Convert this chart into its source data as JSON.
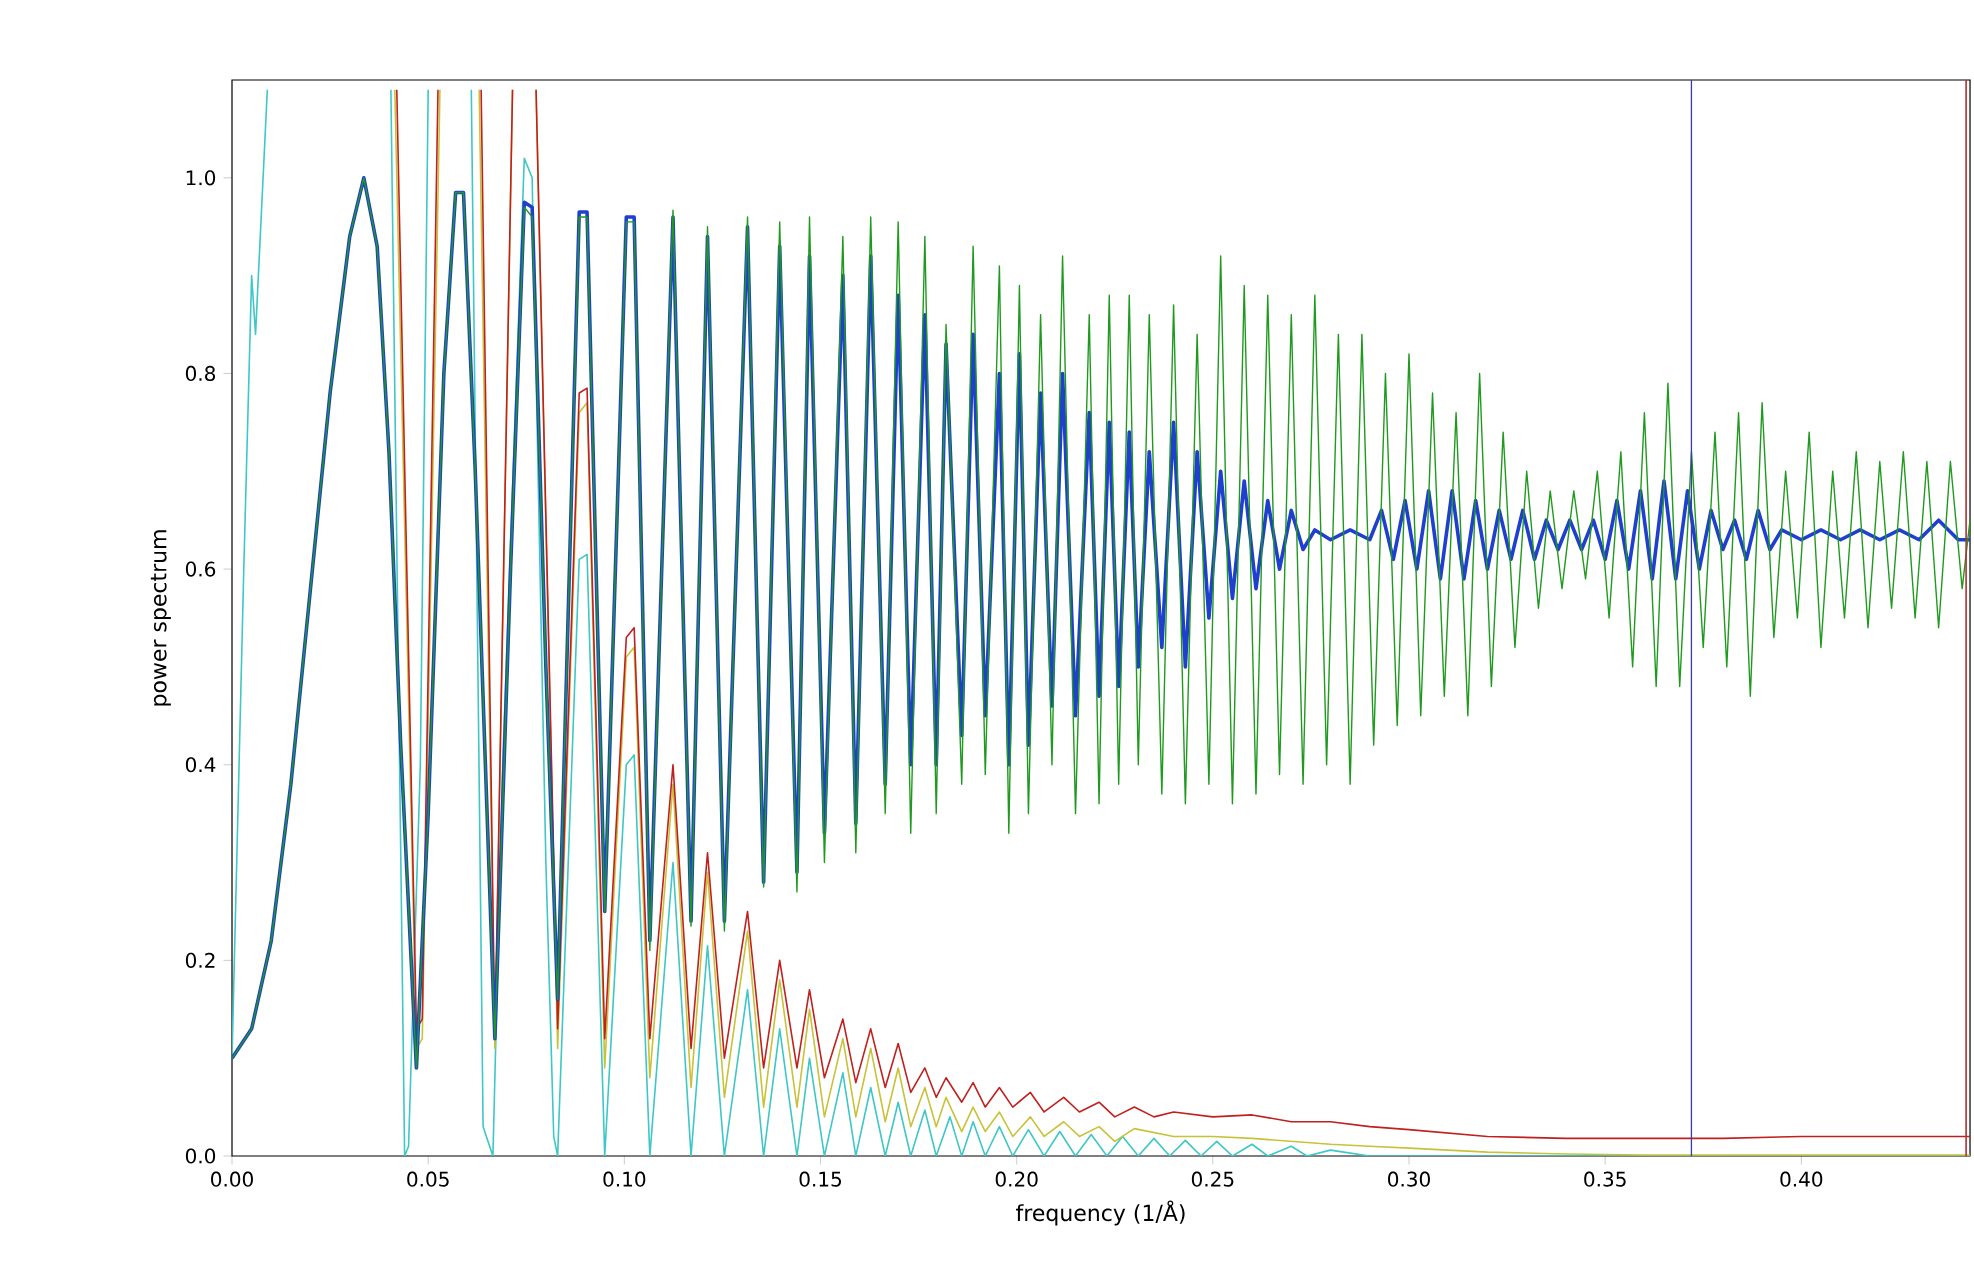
{
  "chart_data": {
    "type": "line",
    "xlabel": "frequency (1/Å)",
    "ylabel": "power spectrum",
    "xlim": [
      0,
      0.443
    ],
    "ylim": [
      0,
      1.1
    ],
    "xticks": [
      {
        "value": 0,
        "label": "0.00"
      },
      {
        "value": 0.05,
        "label": "0.05"
      },
      {
        "value": 0.1,
        "label": "0.10"
      },
      {
        "value": 0.15,
        "label": "0.15"
      },
      {
        "value": 0.2,
        "label": "0.20"
      },
      {
        "value": 0.25,
        "label": "0.25"
      },
      {
        "value": 0.3,
        "label": "0.30"
      },
      {
        "value": 0.35,
        "label": "0.35"
      },
      {
        "value": 0.4,
        "label": "0.40"
      }
    ],
    "yticks": [
      {
        "value": 0,
        "label": "0.0"
      },
      {
        "value": 0.2,
        "label": "0.2"
      },
      {
        "value": 0.4,
        "label": "0.4"
      },
      {
        "value": 0.6,
        "label": "0.6"
      },
      {
        "value": 0.8,
        "label": "0.8"
      },
      {
        "value": 1.0,
        "label": "1.0"
      }
    ],
    "marker": "none",
    "line_style": "solid",
    "ref_lines": [
      {
        "axis": "x",
        "value": 0.372,
        "color": "#3a3aa8"
      },
      {
        "axis": "x",
        "value": 0.442,
        "color": "#b03030"
      }
    ],
    "series": [
      {
        "color": "#1f9a1f",
        "x": [
          0,
          0.005,
          0.01,
          0.015,
          0.02,
          0.025,
          0.03,
          0.0336,
          0.037,
          0.04,
          0.043,
          0.047,
          0.05,
          0.054,
          0.057,
          0.059,
          0.062,
          0.067,
          0.071,
          0.0745,
          0.0765,
          0.08,
          0.083,
          0.086,
          0.0885,
          0.0905,
          0.095,
          0.0985,
          0.1005,
          0.1025,
          0.1065,
          0.1124,
          0.117,
          0.1212,
          0.1255,
          0.1314,
          0.1355,
          0.1396,
          0.144,
          0.1472,
          0.151,
          0.1557,
          0.159,
          0.1628,
          0.1665,
          0.1698,
          0.173,
          0.1766,
          0.1795,
          0.182,
          0.186,
          0.1889,
          0.192,
          0.1956,
          0.198,
          0.2007,
          0.203,
          0.2061,
          0.209,
          0.2117,
          0.215,
          0.2185,
          0.221,
          0.2236,
          0.226,
          0.2287,
          0.231,
          0.2338,
          0.237,
          0.24,
          0.243,
          0.246,
          0.249,
          0.252,
          0.255,
          0.258,
          0.261,
          0.264,
          0.267,
          0.27,
          0.273,
          0.276,
          0.279,
          0.282,
          0.285,
          0.288,
          0.291,
          0.294,
          0.297,
          0.3,
          0.303,
          0.306,
          0.309,
          0.312,
          0.315,
          0.318,
          0.321,
          0.324,
          0.327,
          0.33,
          0.333,
          0.336,
          0.339,
          0.342,
          0.345,
          0.348,
          0.351,
          0.354,
          0.357,
          0.36,
          0.363,
          0.366,
          0.369,
          0.372,
          0.375,
          0.378,
          0.381,
          0.384,
          0.387,
          0.39,
          0.393,
          0.396,
          0.399,
          0.402,
          0.405,
          0.408,
          0.411,
          0.414,
          0.417,
          0.42,
          0.423,
          0.426,
          0.429,
          0.432,
          0.435,
          0.438,
          0.441,
          0.443
        ],
        "values": [
          0.1,
          0.13,
          0.22,
          0.38,
          0.58,
          0.78,
          0.94,
          1.0,
          0.93,
          0.72,
          0.42,
          0.09,
          0.35,
          0.8,
          0.985,
          0.985,
          0.7,
          0.12,
          0.6,
          0.97,
          0.96,
          0.5,
          0.16,
          0.6,
          0.96,
          0.96,
          0.25,
          0.7,
          0.955,
          0.955,
          0.21,
          0.967,
          0.235,
          0.95,
          0.23,
          0.96,
          0.275,
          0.955,
          0.27,
          0.96,
          0.3,
          0.94,
          0.31,
          0.96,
          0.35,
          0.955,
          0.33,
          0.94,
          0.35,
          0.85,
          0.38,
          0.93,
          0.39,
          0.91,
          0.33,
          0.89,
          0.35,
          0.86,
          0.4,
          0.92,
          0.35,
          0.86,
          0.36,
          0.88,
          0.38,
          0.88,
          0.4,
          0.86,
          0.37,
          0.87,
          0.36,
          0.84,
          0.38,
          0.92,
          0.36,
          0.89,
          0.37,
          0.88,
          0.39,
          0.86,
          0.38,
          0.88,
          0.4,
          0.84,
          0.38,
          0.84,
          0.42,
          0.8,
          0.44,
          0.82,
          0.45,
          0.78,
          0.47,
          0.76,
          0.45,
          0.8,
          0.48,
          0.74,
          0.52,
          0.7,
          0.56,
          0.68,
          0.58,
          0.68,
          0.59,
          0.7,
          0.55,
          0.72,
          0.5,
          0.76,
          0.48,
          0.79,
          0.48,
          0.72,
          0.52,
          0.74,
          0.5,
          0.76,
          0.47,
          0.77,
          0.53,
          0.7,
          0.55,
          0.74,
          0.52,
          0.7,
          0.55,
          0.72,
          0.54,
          0.71,
          0.56,
          0.72,
          0.55,
          0.71,
          0.54,
          0.71,
          0.58,
          0.65
        ]
      },
      {
        "color": "#1f3fcf",
        "x": [
          0,
          0.005,
          0.01,
          0.015,
          0.02,
          0.025,
          0.03,
          0.0336,
          0.037,
          0.04,
          0.043,
          0.047,
          0.05,
          0.054,
          0.057,
          0.059,
          0.062,
          0.067,
          0.071,
          0.0745,
          0.0765,
          0.08,
          0.083,
          0.086,
          0.0885,
          0.0905,
          0.095,
          0.0985,
          0.1005,
          0.1025,
          0.1065,
          0.1124,
          0.117,
          0.1212,
          0.1255,
          0.1314,
          0.1355,
          0.1396,
          0.144,
          0.1472,
          0.151,
          0.1557,
          0.159,
          0.1628,
          0.1665,
          0.1698,
          0.173,
          0.1766,
          0.1795,
          0.182,
          0.186,
          0.1889,
          0.192,
          0.1956,
          0.198,
          0.2007,
          0.203,
          0.2061,
          0.209,
          0.2117,
          0.215,
          0.2185,
          0.221,
          0.2236,
          0.226,
          0.2287,
          0.231,
          0.2338,
          0.237,
          0.24,
          0.243,
          0.246,
          0.249,
          0.252,
          0.255,
          0.258,
          0.261,
          0.264,
          0.267,
          0.27,
          0.273,
          0.276,
          0.28,
          0.285,
          0.29,
          0.293,
          0.296,
          0.299,
          0.302,
          0.305,
          0.308,
          0.311,
          0.314,
          0.317,
          0.32,
          0.323,
          0.326,
          0.329,
          0.332,
          0.335,
          0.338,
          0.341,
          0.344,
          0.347,
          0.35,
          0.353,
          0.356,
          0.359,
          0.362,
          0.365,
          0.368,
          0.371,
          0.374,
          0.377,
          0.38,
          0.383,
          0.386,
          0.389,
          0.392,
          0.395,
          0.4,
          0.405,
          0.41,
          0.415,
          0.42,
          0.425,
          0.43,
          0.435,
          0.44,
          0.443
        ],
        "values": [
          0.1,
          0.13,
          0.22,
          0.38,
          0.58,
          0.78,
          0.94,
          1.0,
          0.93,
          0.72,
          0.42,
          0.09,
          0.35,
          0.8,
          0.985,
          0.985,
          0.7,
          0.12,
          0.6,
          0.975,
          0.97,
          0.5,
          0.16,
          0.6,
          0.965,
          0.965,
          0.25,
          0.7,
          0.96,
          0.96,
          0.22,
          0.96,
          0.24,
          0.94,
          0.24,
          0.95,
          0.28,
          0.93,
          0.29,
          0.92,
          0.33,
          0.9,
          0.34,
          0.92,
          0.38,
          0.88,
          0.4,
          0.86,
          0.4,
          0.83,
          0.43,
          0.84,
          0.45,
          0.8,
          0.4,
          0.82,
          0.42,
          0.78,
          0.46,
          0.8,
          0.45,
          0.76,
          0.47,
          0.75,
          0.48,
          0.74,
          0.5,
          0.72,
          0.52,
          0.75,
          0.5,
          0.72,
          0.55,
          0.7,
          0.57,
          0.69,
          0.58,
          0.67,
          0.6,
          0.66,
          0.62,
          0.64,
          0.63,
          0.64,
          0.63,
          0.66,
          0.61,
          0.67,
          0.6,
          0.68,
          0.59,
          0.68,
          0.59,
          0.67,
          0.6,
          0.66,
          0.61,
          0.66,
          0.61,
          0.65,
          0.62,
          0.65,
          0.62,
          0.65,
          0.61,
          0.67,
          0.6,
          0.68,
          0.59,
          0.69,
          0.59,
          0.68,
          0.6,
          0.66,
          0.62,
          0.65,
          0.61,
          0.66,
          0.62,
          0.64,
          0.63,
          0.64,
          0.63,
          0.64,
          0.63,
          0.64,
          0.63,
          0.65,
          0.63,
          0.63
        ]
      },
      {
        "color": "#c0201e",
        "x": [
          0.042,
          0.047,
          0.0485,
          0.0525,
          0.058,
          0.0635,
          0.067,
          0.0715,
          0.0745,
          0.0775,
          0.083,
          0.0885,
          0.0905,
          0.095,
          0.1005,
          0.1025,
          0.1065,
          0.1124,
          0.117,
          0.1212,
          0.1255,
          0.1314,
          0.1355,
          0.1396,
          0.144,
          0.1472,
          0.151,
          0.1557,
          0.159,
          0.1628,
          0.1665,
          0.1698,
          0.173,
          0.1766,
          0.1795,
          0.182,
          0.186,
          0.1889,
          0.192,
          0.1956,
          0.199,
          0.2035,
          0.207,
          0.212,
          0.216,
          0.221,
          0.225,
          0.23,
          0.235,
          0.24,
          0.25,
          0.26,
          0.27,
          0.28,
          0.29,
          0.3,
          0.32,
          0.34,
          0.36,
          0.38,
          0.4,
          0.42,
          0.443
        ],
        "values": [
          1.09,
          0.13,
          0.14,
          1.09,
          null,
          1.09,
          0.12,
          1.09,
          null,
          1.09,
          0.13,
          0.78,
          0.785,
          0.12,
          0.53,
          0.54,
          0.12,
          0.4,
          0.11,
          0.31,
          0.1,
          0.25,
          0.09,
          0.2,
          0.09,
          0.17,
          0.08,
          0.14,
          0.075,
          0.13,
          0.07,
          0.115,
          0.065,
          0.09,
          0.06,
          0.08,
          0.055,
          0.075,
          0.05,
          0.07,
          0.05,
          0.065,
          0.045,
          0.06,
          0.045,
          0.055,
          0.04,
          0.05,
          0.04,
          0.045,
          0.04,
          0.042,
          0.035,
          0.035,
          0.03,
          0.027,
          0.02,
          0.018,
          0.018,
          0.018,
          0.02,
          0.02,
          0.02
        ]
      },
      {
        "color": "#c8c23a",
        "x": [
          0.0415,
          0.047,
          0.0485,
          0.053,
          0.058,
          0.063,
          0.067,
          0.0715,
          0.0745,
          0.0775,
          0.083,
          0.0885,
          0.0905,
          0.095,
          0.1005,
          0.1025,
          0.1065,
          0.1124,
          0.117,
          0.1212,
          0.1255,
          0.1314,
          0.1355,
          0.1396,
          0.144,
          0.1472,
          0.151,
          0.1557,
          0.159,
          0.1628,
          0.1665,
          0.1698,
          0.173,
          0.1766,
          0.1795,
          0.182,
          0.186,
          0.1889,
          0.192,
          0.1956,
          0.199,
          0.2035,
          0.207,
          0.212,
          0.216,
          0.221,
          0.225,
          0.23,
          0.24,
          0.25,
          0.26,
          0.27,
          0.28,
          0.29,
          0.3,
          0.32,
          0.34,
          0.36,
          0.4,
          0.443
        ],
        "values": [
          1.09,
          0.11,
          0.12,
          1.09,
          null,
          1.09,
          0.11,
          1.09,
          null,
          1.09,
          0.11,
          0.76,
          0.77,
          0.09,
          0.51,
          0.52,
          0.08,
          0.38,
          0.07,
          0.29,
          0.06,
          0.23,
          0.05,
          0.18,
          0.05,
          0.15,
          0.04,
          0.12,
          0.04,
          0.11,
          0.035,
          0.09,
          0.03,
          0.07,
          0.03,
          0.06,
          0.025,
          0.05,
          0.025,
          0.045,
          0.02,
          0.04,
          0.02,
          0.035,
          0.02,
          0.03,
          0.015,
          0.028,
          0.02,
          0.02,
          0.018,
          0.015,
          0.012,
          0.01,
          0.008,
          0.004,
          0.002,
          0.001,
          0.001,
          0.001
        ]
      },
      {
        "color": "#3fc6c6",
        "x": [
          0,
          0.003,
          0.005,
          0.006,
          0.009,
          0.025,
          0.0405,
          0.044,
          0.045,
          0.048,
          0.05,
          0.055,
          0.061,
          0.064,
          0.0665,
          0.069,
          0.0745,
          0.0765,
          0.08,
          0.082,
          0.083,
          0.0885,
          0.0905,
          0.095,
          0.1005,
          0.1025,
          0.1065,
          0.1124,
          0.117,
          0.1212,
          0.1255,
          0.1314,
          0.1355,
          0.1396,
          0.144,
          0.1472,
          0.151,
          0.1557,
          0.159,
          0.1628,
          0.1665,
          0.1698,
          0.173,
          0.1766,
          0.1795,
          0.183,
          0.186,
          0.1889,
          0.192,
          0.1956,
          0.199,
          0.203,
          0.207,
          0.211,
          0.215,
          0.219,
          0.223,
          0.227,
          0.231,
          0.235,
          0.239,
          0.243,
          0.247,
          0.251,
          0.255,
          0.26,
          0.264,
          0.27,
          0.274,
          0.28,
          0.29,
          0.443
        ],
        "values": [
          0.1,
          0.6,
          0.9,
          0.84,
          1.09,
          null,
          1.09,
          0.0,
          0.01,
          0.4,
          1.09,
          null,
          1.09,
          0.03,
          0.0,
          0.4,
          1.02,
          1.0,
          0.3,
          0.02,
          0.0,
          0.61,
          0.615,
          0.0,
          0.4,
          0.41,
          0.0,
          0.3,
          0.0,
          0.215,
          0.0,
          0.17,
          0.0,
          0.13,
          0.0,
          0.1,
          0.0,
          0.085,
          0.0,
          0.07,
          0.0,
          0.055,
          0.0,
          0.047,
          0.0,
          0.04,
          0.0,
          0.035,
          0.0,
          0.03,
          0.0,
          0.027,
          0.0,
          0.025,
          0.0,
          0.022,
          0.0,
          0.02,
          0.0,
          0.018,
          0.0,
          0.016,
          0.0,
          0.015,
          0.0,
          0.012,
          0.0,
          0.01,
          0.0,
          0.006,
          0.0,
          0.0
        ]
      }
    ]
  }
}
